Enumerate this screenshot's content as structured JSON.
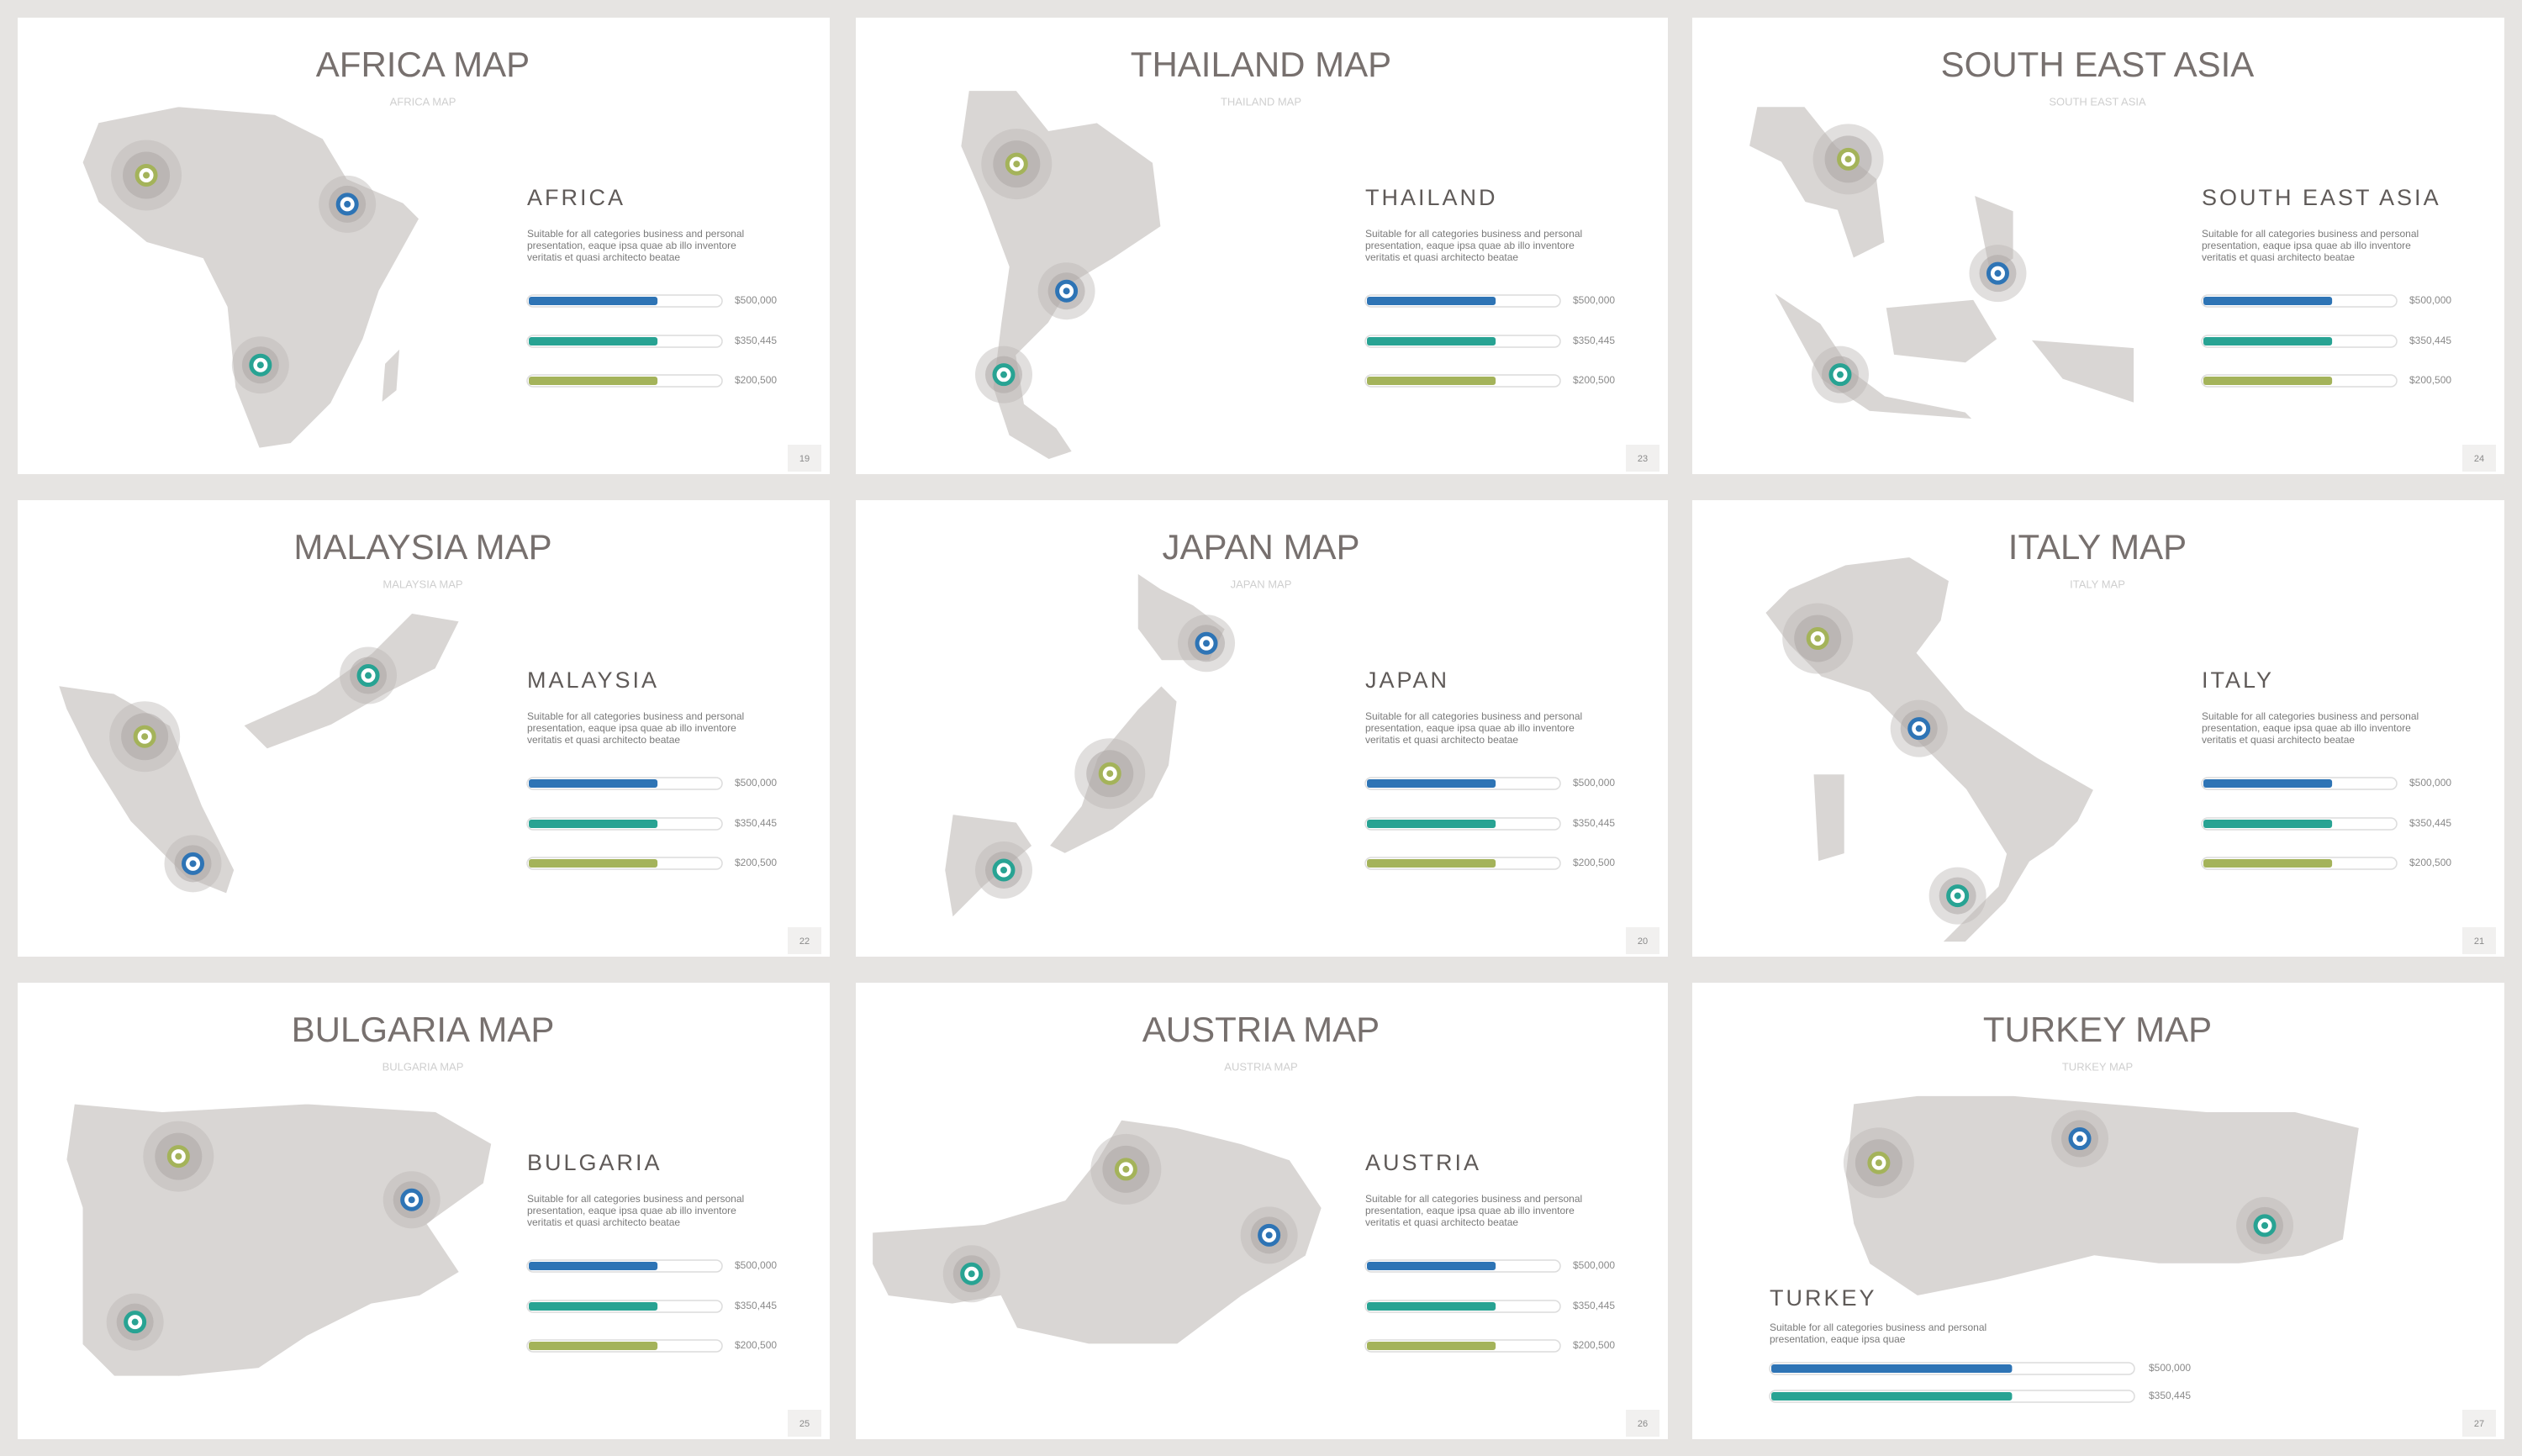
{
  "slides": [
    {
      "title": "AFRICA MAP",
      "subtitle": "AFRICA MAP",
      "heading": "AFRICA",
      "description": [
        "Suitable for all categories business and personal",
        "presentation, eaque ipsa quae ab illo inventore",
        "veritatis et quasi architecto beatae"
      ],
      "bars": [
        "$500,000",
        "$350,445",
        "$200,500"
      ],
      "page": "19"
    },
    {
      "title": "THAILAND MAP",
      "subtitle": "THAILAND MAP",
      "heading": "THAILAND",
      "description": [
        "Suitable for all categories business and personal",
        "presentation, eaque ipsa quae ab illo inventore",
        "veritatis et quasi architecto beatae"
      ],
      "bars": [
        "$500,000",
        "$350,445",
        "$200,500"
      ],
      "page": "23"
    },
    {
      "title": "SOUTH EAST ASIA",
      "subtitle": "SOUTH EAST ASIA",
      "heading": "SOUTH EAST ASIA",
      "description": [
        "Suitable for all categories business and personal",
        "presentation, eaque ipsa quae ab illo inventore",
        "veritatis et quasi architecto beatae"
      ],
      "bars": [
        "$500,000",
        "$350,445",
        "$200,500"
      ],
      "page": "24"
    },
    {
      "title": "MALAYSIA MAP",
      "subtitle": "MALAYSIA MAP",
      "heading": "MALAYSIA",
      "description": [
        "Suitable for all categories business and personal",
        "presentation, eaque ipsa quae ab illo inventore",
        "veritatis et quasi architecto beatae"
      ],
      "bars": [
        "$500,000",
        "$350,445",
        "$200,500"
      ],
      "page": "22"
    },
    {
      "title": "JAPAN MAP",
      "subtitle": "JAPAN MAP",
      "heading": "JAPAN",
      "description": [
        "Suitable for all categories business and personal",
        "presentation, eaque ipsa quae ab illo inventore",
        "veritatis et quasi architecto beatae"
      ],
      "bars": [
        "$500,000",
        "$350,445",
        "$200,500"
      ],
      "page": "20"
    },
    {
      "title": "ITALY MAP",
      "subtitle": "ITALY MAP",
      "heading": "ITALY",
      "description": [
        "Suitable for all categories business and personal",
        "presentation, eaque ipsa quae ab illo inventore",
        "veritatis et quasi architecto beatae"
      ],
      "bars": [
        "$500,000",
        "$350,445",
        "$200,500"
      ],
      "page": "21"
    },
    {
      "title": "BULGARIA MAP",
      "subtitle": "BULGARIA MAP",
      "heading": "BULGARIA",
      "description": [
        "Suitable for all categories business and personal",
        "presentation, eaque ipsa quae ab illo inventore",
        "veritatis et quasi architecto beatae"
      ],
      "bars": [
        "$500,000",
        "$350,445",
        "$200,500"
      ],
      "page": "25"
    },
    {
      "title": "AUSTRIA MAP",
      "subtitle": "AUSTRIA MAP",
      "heading": "AUSTRIA",
      "description": [
        "Suitable for all categories business and personal",
        "presentation, eaque ipsa quae ab illo inventore",
        "veritatis et quasi architecto beatae"
      ],
      "bars": [
        "$500,000",
        "$350,445",
        "$200,500"
      ],
      "page": "26"
    },
    {
      "title": "TURKEY MAP",
      "subtitle": "TURKEY MAP",
      "heading": "TURKEY",
      "description": [
        "Suitable for all categories business and personal",
        "presentation, eaque ipsa quae"
      ],
      "bars": [
        "$500,000",
        "$350,445"
      ],
      "page": "27"
    }
  ]
}
